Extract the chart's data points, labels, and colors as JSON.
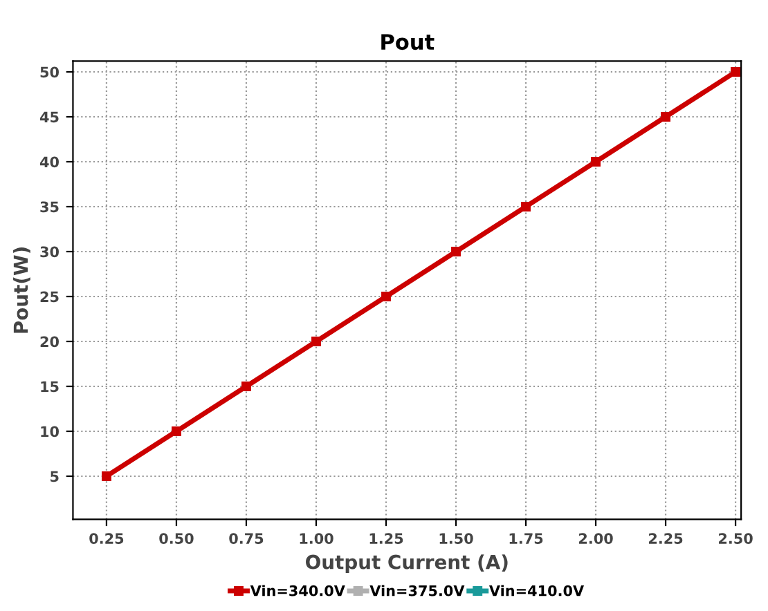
{
  "chart_data": {
    "type": "line",
    "title": "Pout",
    "xlabel": "Output Current (A)",
    "ylabel": "Pout(W)",
    "x": [
      0.25,
      0.5,
      0.75,
      1.0,
      1.25,
      1.5,
      1.75,
      2.0,
      2.25,
      2.5
    ],
    "series": [
      {
        "name": "Vin=340.0V",
        "color": "#cc0000",
        "values": [
          5,
          10,
          15,
          20,
          25,
          30,
          35,
          40,
          45,
          50
        ]
      },
      {
        "name": "Vin=375.0V",
        "color": "#b0b0b0",
        "values": [
          null,
          null,
          null,
          null,
          null,
          null,
          null,
          null,
          null,
          null
        ]
      },
      {
        "name": "Vin=410.0V",
        "color": "#1a9a9a",
        "values": [
          null,
          null,
          null,
          null,
          null,
          null,
          null,
          null,
          null,
          null
        ]
      }
    ],
    "xlim": [
      0.13,
      2.52
    ],
    "ylim": [
      0.2,
      51.2
    ],
    "xticks": [
      {
        "value": 0.25,
        "label": "0.25"
      },
      {
        "value": 0.5,
        "label": "0.50"
      },
      {
        "value": 0.75,
        "label": "0.75"
      },
      {
        "value": 1.0,
        "label": "1.00"
      },
      {
        "value": 1.25,
        "label": "1.25"
      },
      {
        "value": 1.5,
        "label": "1.50"
      },
      {
        "value": 1.75,
        "label": "1.75"
      },
      {
        "value": 2.0,
        "label": "2.00"
      },
      {
        "value": 2.25,
        "label": "2.25"
      },
      {
        "value": 2.5,
        "label": "2.50"
      }
    ],
    "yticks": [
      5,
      10,
      15,
      20,
      25,
      30,
      35,
      40,
      45,
      50
    ],
    "grid": true,
    "legend": "bottom",
    "marker": "square",
    "line_style": "solid"
  }
}
